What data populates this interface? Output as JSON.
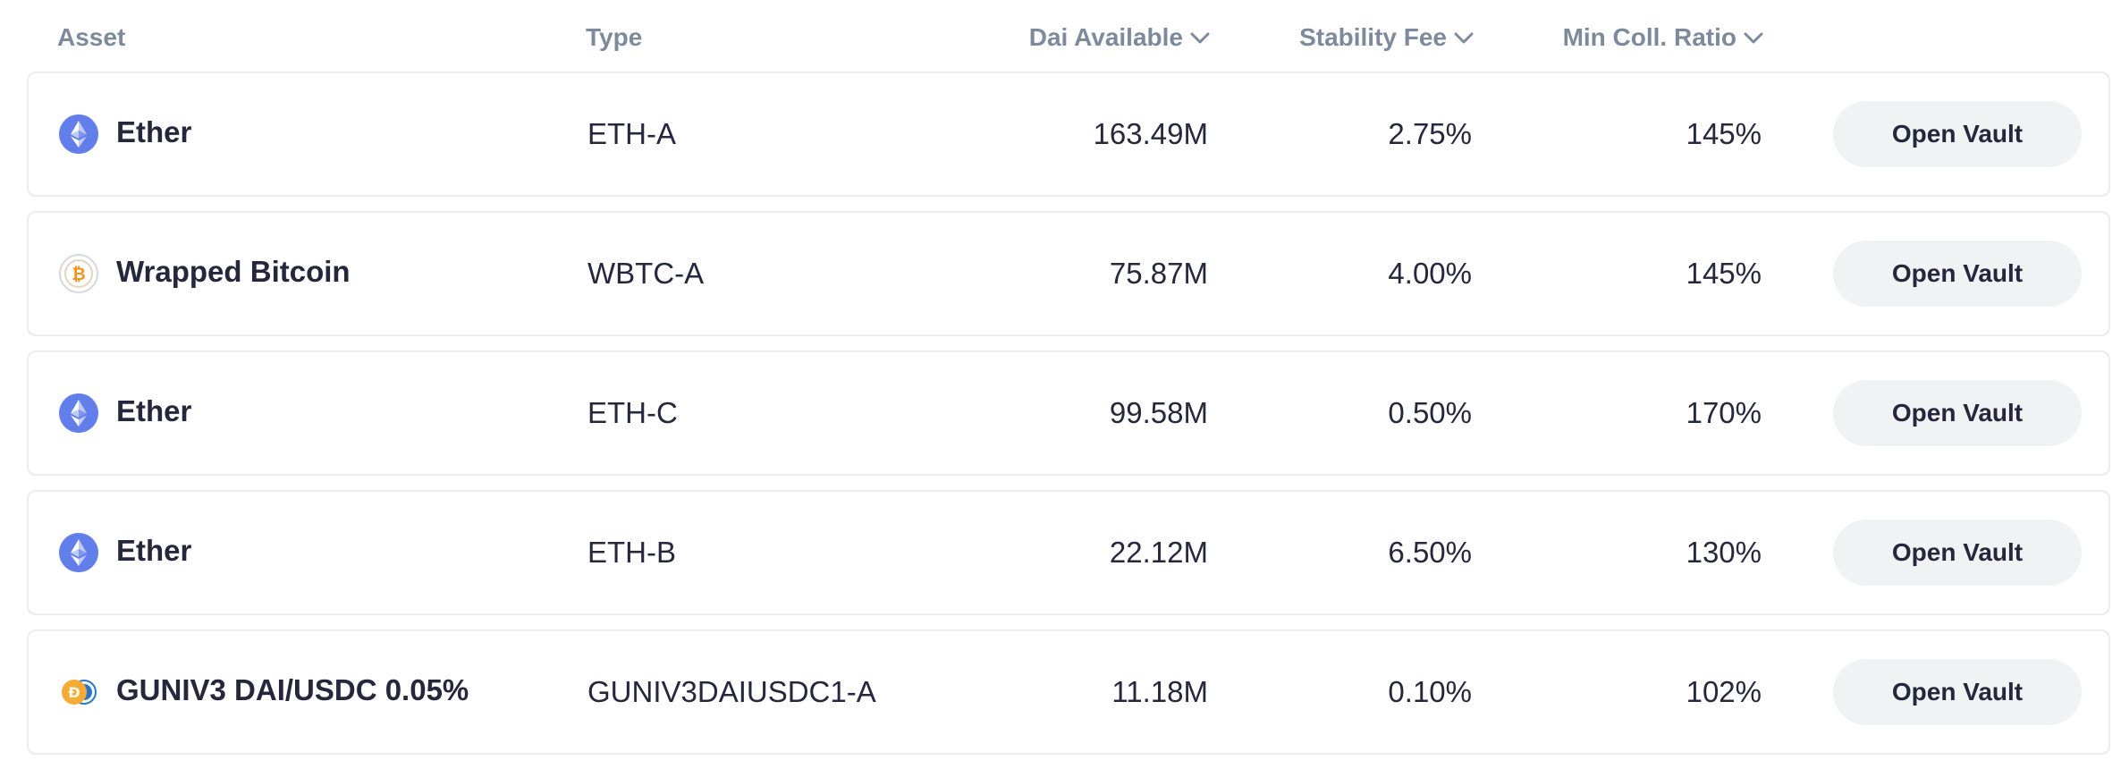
{
  "columns": {
    "asset": "Asset",
    "type": "Type",
    "dai_available": "Dai Available",
    "stability_fee": "Stability Fee",
    "min_coll_ratio": "Min Coll. Ratio"
  },
  "rows": [
    {
      "asset": "Ether",
      "icon": "ether-icon",
      "type": "ETH-A",
      "dai_available": "163.49M",
      "stability_fee": "2.75%",
      "min_coll_ratio": "145%",
      "action": "Open Vault"
    },
    {
      "asset": "Wrapped Bitcoin",
      "icon": "wrapped-bitcoin-icon",
      "type": "WBTC-A",
      "dai_available": "75.87M",
      "stability_fee": "4.00%",
      "min_coll_ratio": "145%",
      "action": "Open Vault"
    },
    {
      "asset": "Ether",
      "icon": "ether-icon",
      "type": "ETH-C",
      "dai_available": "99.58M",
      "stability_fee": "0.50%",
      "min_coll_ratio": "170%",
      "action": "Open Vault"
    },
    {
      "asset": "Ether",
      "icon": "ether-icon",
      "type": "ETH-B",
      "dai_available": "22.12M",
      "stability_fee": "6.50%",
      "min_coll_ratio": "130%",
      "action": "Open Vault"
    },
    {
      "asset": "GUNIV3 DAI/USDC 0.05%",
      "icon": "guniv3-dai-usdc-icon",
      "type": "GUNIV3DAIUSDC1-A",
      "dai_available": "11.18M",
      "stability_fee": "0.10%",
      "min_coll_ratio": "102%",
      "action": "Open Vault"
    }
  ],
  "colors": {
    "ether": "#627eea",
    "bitcoin": "#f7931a",
    "dai": "#f5ac37",
    "usdc": "#2775ca",
    "header_text": "#7d8a9c",
    "button_bg": "#f1f2f4"
  }
}
